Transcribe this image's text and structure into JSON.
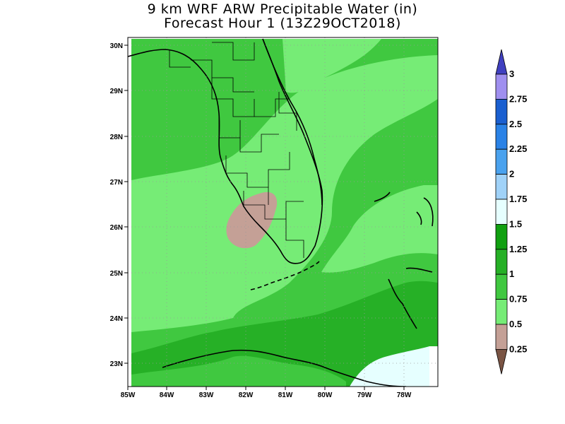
{
  "title": {
    "line1": "9 km WRF ARW Precipitable Water (in)",
    "line2": "Forecast Hour 1 (13Z29OCT2018)"
  },
  "axes": {
    "lon_labels": [
      "85W",
      "84W",
      "83W",
      "82W",
      "81W",
      "80W",
      "79W",
      "78W"
    ],
    "lat_labels": [
      "30N",
      "29N",
      "28N",
      "27N",
      "26N",
      "25N",
      "24N",
      "23N"
    ]
  },
  "colorbar": {
    "levels": [
      "3",
      "2.75",
      "2.5",
      "2.25",
      "2",
      "1.75",
      "1.5",
      "1.25",
      "1",
      "0.75",
      "0.5",
      "0.25"
    ],
    "colors": [
      "#4040c0",
      "#9f8fef",
      "#1a5fd0",
      "#2a82e6",
      "#4aa2ee",
      "#a0d2f8",
      "#e6ffff",
      "#10a010",
      "#26b026",
      "#40c840",
      "#76ec76",
      "#c4a096",
      "#7a5444"
    ]
  },
  "map": {
    "colors": {
      "pw_050_075": "#76ec76",
      "pw_075_100": "#40c840",
      "pw_100_125": "#26b026",
      "pw_025_050": "#c4a096",
      "pw_150_175": "#e6ffff"
    }
  }
}
